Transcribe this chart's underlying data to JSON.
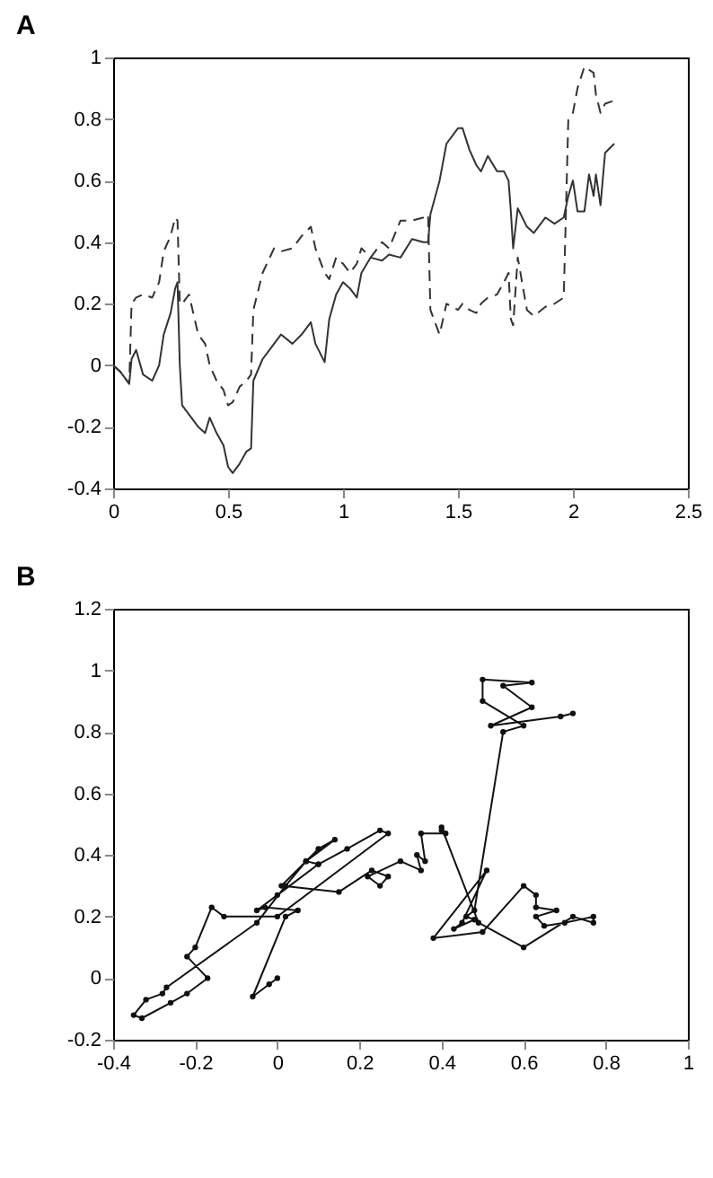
{
  "chart_data": [
    {
      "type": "line",
      "title": "A",
      "xlim": [
        0,
        2.5
      ],
      "ylim": [
        -0.4,
        1
      ],
      "xticks": [
        0,
        0.5,
        1,
        1.5,
        2,
        2.5
      ],
      "yticks": [
        -0.4,
        -0.2,
        0,
        0.2,
        0.4,
        0.6,
        0.8,
        1
      ],
      "grid": false,
      "x": [
        0,
        0.03,
        0.07,
        0.08,
        0.1,
        0.13,
        0.17,
        0.2,
        0.22,
        0.25,
        0.27,
        0.28,
        0.29,
        0.3,
        0.33,
        0.37,
        0.4,
        0.42,
        0.45,
        0.48,
        0.5,
        0.52,
        0.55,
        0.58,
        0.6,
        0.61,
        0.65,
        0.7,
        0.73,
        0.78,
        0.82,
        0.86,
        0.88,
        0.92,
        0.94,
        0.97,
        1.0,
        1.03,
        1.06,
        1.08,
        1.12,
        1.17,
        1.2,
        1.25,
        1.3,
        1.35,
        1.37,
        1.38,
        1.42,
        1.45,
        1.5,
        1.52,
        1.55,
        1.58,
        1.6,
        1.63,
        1.67,
        1.7,
        1.72,
        1.73,
        1.74,
        1.76,
        1.8,
        1.83,
        1.88,
        1.92,
        1.96,
        1.98,
        2.0,
        2.02,
        2.05,
        2.07,
        2.09,
        2.1,
        2.12,
        2.14,
        2.18
      ],
      "series": [
        {
          "color": "#333333",
          "line_style": "solid",
          "values": [
            0,
            -0.02,
            -0.06,
            0.02,
            0.05,
            -0.03,
            -0.05,
            0.0,
            0.1,
            0.17,
            0.25,
            0.27,
            0.0,
            -0.13,
            -0.16,
            -0.2,
            -0.22,
            -0.17,
            -0.22,
            -0.26,
            -0.33,
            -0.35,
            -0.32,
            -0.28,
            -0.27,
            -0.05,
            0.02,
            0.07,
            0.1,
            0.07,
            0.1,
            0.14,
            0.07,
            0.01,
            0.15,
            0.23,
            0.27,
            0.25,
            0.22,
            0.3,
            0.35,
            0.34,
            0.36,
            0.35,
            0.41,
            0.4,
            0.4,
            0.49,
            0.6,
            0.72,
            0.77,
            0.77,
            0.7,
            0.65,
            0.63,
            0.68,
            0.63,
            0.63,
            0.6,
            0.5,
            0.38,
            0.51,
            0.45,
            0.43,
            0.48,
            0.46,
            0.48,
            0.55,
            0.6,
            0.5,
            0.5,
            0.62,
            0.55,
            0.62,
            0.52,
            0.69,
            0.72
          ]
        },
        {
          "color": "#333333",
          "line_style": "dashed",
          "values": [
            0,
            -0.02,
            -0.06,
            0.2,
            0.22,
            0.23,
            0.22,
            0.27,
            0.37,
            0.42,
            0.48,
            0.47,
            0.2,
            0.2,
            0.23,
            0.1,
            0.07,
            0.0,
            -0.05,
            -0.08,
            -0.13,
            -0.12,
            -0.07,
            -0.05,
            -0.03,
            0.18,
            0.3,
            0.38,
            0.37,
            0.38,
            0.42,
            0.45,
            0.38,
            0.3,
            0.28,
            0.35,
            0.33,
            0.3,
            0.33,
            0.38,
            0.35,
            0.4,
            0.38,
            0.47,
            0.47,
            0.48,
            0.49,
            0.18,
            0.1,
            0.2,
            0.18,
            0.2,
            0.18,
            0.17,
            0.2,
            0.22,
            0.23,
            0.27,
            0.3,
            0.15,
            0.13,
            0.35,
            0.18,
            0.16,
            0.19,
            0.2,
            0.22,
            0.8,
            0.82,
            0.9,
            0.97,
            0.96,
            0.95,
            0.88,
            0.82,
            0.85,
            0.86
          ]
        }
      ]
    },
    {
      "type": "line",
      "title": "B",
      "xlim": [
        -0.4,
        1
      ],
      "ylim": [
        -0.2,
        1.2
      ],
      "xticks": [
        -0.4,
        -0.2,
        0,
        0.2,
        0.4,
        0.6,
        0.8,
        1
      ],
      "yticks": [
        -0.2,
        0,
        0.2,
        0.4,
        0.6,
        0.8,
        1,
        1.2
      ],
      "grid": false,
      "series": [
        {
          "color": "#111111",
          "line_style": "solid",
          "marker": "circle",
          "x": [
            0,
            -0.02,
            -0.06,
            0.02,
            0.05,
            -0.03,
            -0.05,
            0.0,
            0.1,
            0.17,
            0.25,
            0.27,
            0.0,
            -0.13,
            -0.16,
            -0.2,
            -0.22,
            -0.17,
            -0.22,
            -0.26,
            -0.33,
            -0.35,
            -0.32,
            -0.28,
            -0.27,
            -0.05,
            0.02,
            0.07,
            0.1,
            0.07,
            0.1,
            0.14,
            0.07,
            0.01,
            0.15,
            0.23,
            0.27,
            0.25,
            0.22,
            0.3,
            0.35,
            0.34,
            0.36,
            0.35,
            0.41,
            0.4,
            0.4,
            0.49,
            0.6,
            0.72,
            0.77,
            0.77,
            0.7,
            0.65,
            0.63,
            0.68,
            0.63,
            0.63,
            0.6,
            0.5,
            0.38,
            0.51,
            0.45,
            0.43,
            0.48,
            0.46,
            0.48,
            0.55,
            0.6,
            0.5,
            0.5,
            0.62,
            0.55,
            0.62,
            0.52,
            0.69,
            0.72
          ],
          "values": [
            0,
            -0.02,
            -0.06,
            0.2,
            0.22,
            0.23,
            0.22,
            0.27,
            0.37,
            0.42,
            0.48,
            0.47,
            0.2,
            0.2,
            0.23,
            0.1,
            0.07,
            0.0,
            -0.05,
            -0.08,
            -0.13,
            -0.12,
            -0.07,
            -0.05,
            -0.03,
            0.18,
            0.3,
            0.38,
            0.37,
            0.38,
            0.42,
            0.45,
            0.38,
            0.3,
            0.28,
            0.35,
            0.33,
            0.3,
            0.33,
            0.38,
            0.35,
            0.4,
            0.38,
            0.47,
            0.47,
            0.48,
            0.49,
            0.18,
            0.1,
            0.2,
            0.18,
            0.2,
            0.18,
            0.17,
            0.2,
            0.22,
            0.23,
            0.27,
            0.3,
            0.15,
            0.13,
            0.35,
            0.18,
            0.16,
            0.19,
            0.2,
            0.22,
            0.8,
            0.82,
            0.9,
            0.97,
            0.96,
            0.95,
            0.88,
            0.82,
            0.85,
            0.86
          ]
        }
      ]
    }
  ]
}
